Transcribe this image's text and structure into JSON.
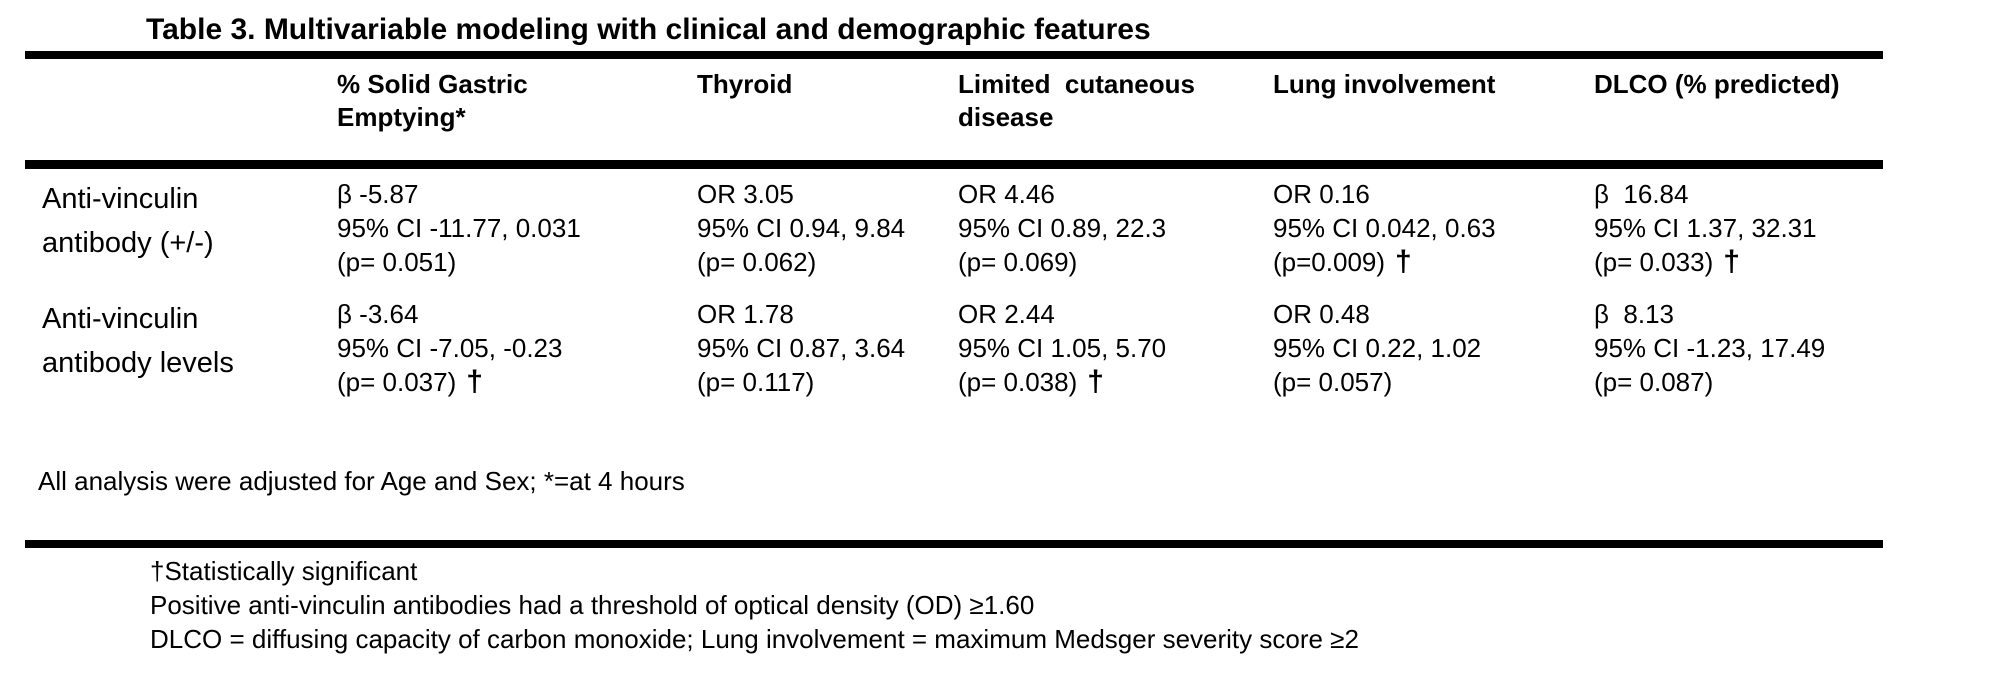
{
  "colors": {
    "text": "#000000",
    "background": "#ffffff",
    "rule": "#000000"
  },
  "table": {
    "title": "Table 3. Multivariable modeling with clinical and demographic features",
    "columns": [
      "% Solid Gastric\nEmptying*",
      "Thyroid",
      "Limited  cutaneous\ndisease",
      "Lung involvement",
      "DLCO (% predicted)"
    ],
    "rows": [
      {
        "label": "Anti-vinculin\nantibody (+/-)",
        "cells": [
          {
            "est": "β -5.87",
            "ci": "95% CI -11.77, 0.031",
            "p": "(p= 0.051)"
          },
          {
            "est": "OR 3.05",
            "ci": "95% CI 0.94, 9.84",
            "p": "(p= 0.062)"
          },
          {
            "est": "OR 4.46",
            "ci": "95% CI 0.89, 22.3",
            "p": "(p= 0.069)"
          },
          {
            "est": "OR 0.16",
            "ci": "95% CI 0.042, 0.63",
            "p": "(p=0.009)",
            "dagger": "†"
          },
          {
            "est": "β  16.84",
            "ci": "95% CI 1.37, 32.31",
            "p": "(p= 0.033)",
            "dagger": "†"
          }
        ]
      },
      {
        "label": "Anti-vinculin\nantibody levels",
        "cells": [
          {
            "est": "β -3.64",
            "ci": "95% CI -7.05, -0.23",
            "p": "(p= 0.037)",
            "dagger": "†"
          },
          {
            "est": "OR 1.78",
            "ci": "95% CI 0.87, 3.64",
            "p": "(p= 0.117)"
          },
          {
            "est": "OR 2.44",
            "ci": "95% CI 1.05, 5.70",
            "p": "(p= 0.038)",
            "dagger": "†"
          },
          {
            "est": "OR 0.48",
            "ci": "95% CI 0.22, 1.02",
            "p": "(p= 0.057)"
          },
          {
            "est": "β  8.13",
            "ci": "95% CI -1.23, 17.49",
            "p": "(p= 0.087)"
          }
        ]
      }
    ],
    "note_adjusted": "All analysis were adjusted for Age and Sex; *=at 4 hours",
    "footnotes": [
      "†Statistically significant",
      "Positive anti-vinculin antibodies had a threshold of optical density (OD) ≥1.60",
      "DLCO = diffusing capacity of carbon monoxide; Lung involvement = maximum Medsger severity score ≥2"
    ]
  }
}
